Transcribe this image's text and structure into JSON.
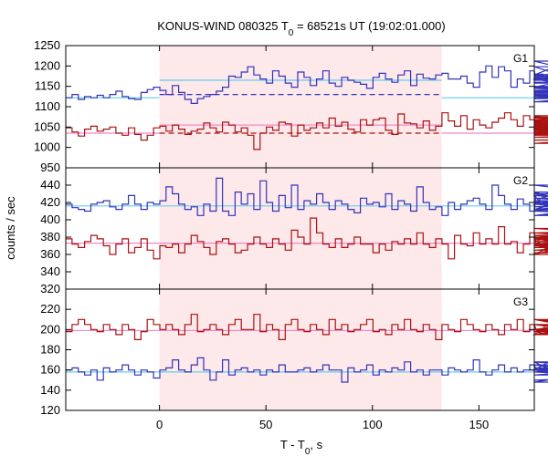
{
  "chart_data": {
    "type": "line",
    "title_prefix": "KONUS-WIND 080325 T",
    "title_sub": "0",
    "title_suffix": " = 68521s UT (19:02:01.000)",
    "xlabel_prefix": "T - T",
    "xlabel_sub": "0",
    "xlabel_suffix": ", s",
    "ylabel": "counts / sec",
    "xlim": [
      -44,
      176
    ],
    "xticks": [
      0,
      50,
      100,
      150
    ],
    "shade_region": [
      0,
      132.5
    ],
    "shade_color": "#fde8ea",
    "bin_width": 2.944,
    "colors": {
      "blue_series": "#3333bb",
      "red_series": "#aa1111",
      "blue_fit": "#66ccee",
      "red_fit": "#ee88cc",
      "red_bg": "#aa1111",
      "blue_bg": "#3333bb"
    },
    "panels": [
      {
        "label": "G1",
        "ylim": [
          950,
          1250
        ],
        "yticks": [
          950,
          1000,
          1050,
          1100,
          1150,
          1200,
          1250
        ],
        "series": [
          {
            "color_key": "blue_series",
            "values": [
              1122,
              1130,
              1118,
              1125,
              1122,
              1128,
              1122,
              1130,
              1138,
              1125,
              1120,
              1118,
              1135,
              1142,
              1148,
              1140,
              1130,
              1152,
              1135,
              1118,
              1108,
              1120,
              1125,
              1130,
              1138,
              1148,
              1175,
              1172,
              1185,
              1198,
              1178,
              1168,
              1158,
              1188,
              1175,
              1158,
              1148,
              1185,
              1172,
              1152,
              1168,
              1188,
              1158,
              1150,
              1172,
              1165,
              1160,
              1155,
              1145,
              1172,
              1182,
              1168,
              1160,
              1178,
              1188,
              1152,
              1180,
              1170,
              1168,
              1178,
              1182,
              1168,
              1168,
              1175,
              1158,
              1148,
              1185,
              1200,
              1172,
              1198,
              1188,
              1148,
              1168,
              1158,
              1188,
              1168,
              1180,
              1178,
              1198,
              1198,
              1172,
              1168,
              1148,
              1148,
              1178,
              1160,
              1158,
              1170,
              1172,
              1170,
              1165,
              1168,
              1175,
              1212,
              1140,
              1148,
              1138,
              1112,
              1132,
              1120,
              1125,
              1112,
              1145,
              1128,
              1135,
              1140,
              1122,
              1132,
              1128,
              1125,
              1135,
              1148,
              1128,
              1138,
              1130,
              1150
            ]
          },
          {
            "color_key": "red_series",
            "values": [
              1048,
              1038,
              1028,
              1045,
              1052,
              1040,
              1045,
              1050,
              1035,
              1030,
              1048,
              1032,
              1018,
              1030,
              1048,
              1052,
              1040,
              1055,
              1045,
              1032,
              1040,
              1045,
              1060,
              1048,
              1038,
              1062,
              1055,
              1038,
              1048,
              1030,
              995,
              1035,
              1050,
              1042,
              1062,
              1058,
              1028,
              1055,
              1042,
              1048,
              1060,
              1048,
              1072,
              1052,
              1062,
              1045,
              1038,
              1068,
              1055,
              1068,
              1072,
              1042,
              1032,
              1082,
              1060,
              1058,
              1048,
              1065,
              1042,
              1052,
              1085,
              1065,
              1052,
              1078,
              1045,
              1068,
              1055,
              1048,
              1062,
              1072,
              1085,
              1068,
              1052,
              1078,
              1068,
              1045,
              1062,
              1058,
              1075,
              1065,
              1052,
              1042,
              1068,
              1055,
              1078,
              1048,
              1038,
              1062,
              1048,
              1058,
              1072,
              1055,
              1068,
              1035,
              1060,
              1072,
              1048,
              1058,
              1040,
              1018,
              1025,
              1040,
              1010,
              1038,
              1025,
              1030,
              1032,
              1048,
              1030,
              1038,
              1045,
              1025,
              1035,
              1042,
              1032,
              1038,
              1040,
              1038,
              1030,
              1042
            ]
          }
        ],
        "fits": [
          {
            "color_key": "blue_fit",
            "y": 1165,
            "x_range": [
              0,
              132.5
            ]
          },
          {
            "color_key": "blue_fit",
            "y": 1122,
            "x_range": [
              -44,
              0
            ]
          },
          {
            "color_key": "blue_fit",
            "y": 1122,
            "x_range": [
              132.5,
              176
            ]
          },
          {
            "color_key": "red_fit",
            "y": 1055,
            "x_range": [
              0,
              132.5
            ]
          },
          {
            "color_key": "red_fit",
            "y": 1035,
            "x_range": [
              -44,
              0
            ]
          },
          {
            "color_key": "red_fit",
            "y": 1035,
            "x_range": [
              132.5,
              176
            ]
          }
        ],
        "backgrounds": [
          {
            "color_key": "blue_bg",
            "y": 1130,
            "x_range": [
              0,
              132.5
            ]
          },
          {
            "color_key": "red_bg",
            "y": 1035,
            "x_range": [
              0,
              132.5
            ]
          }
        ]
      },
      {
        "label": "G2",
        "ylim": [
          320,
          460
        ],
        "yticks": [
          320,
          340,
          360,
          380,
          400,
          420,
          440
        ],
        "series": [
          {
            "color_key": "blue_series",
            "values": [
              418,
              414,
              412,
              410,
              418,
              420,
              422,
              415,
              412,
              418,
              428,
              418,
              412,
              420,
              418,
              422,
              438,
              430,
              418,
              412,
              415,
              405,
              418,
              410,
              448,
              410,
              405,
              432,
              418,
              430,
              412,
              445,
              420,
              410,
              428,
              414,
              440,
              412,
              422,
              418,
              430,
              420,
              412,
              422,
              418,
              412,
              408,
              425,
              418,
              420,
              415,
              430,
              412,
              422,
              418,
              410,
              438,
              420,
              412,
              415,
              405,
              420,
              412,
              418,
              422,
              425,
              418,
              412,
              440,
              428,
              418,
              412,
              424,
              418,
              410,
              428,
              418,
              432,
              420,
              412,
              422,
              410,
              418,
              432,
              412,
              418,
              430,
              430,
              415,
              422,
              418,
              440,
              425,
              425,
              418,
              410,
              405,
              425,
              412,
              418,
              412,
              418,
              412,
              405,
              422,
              418,
              428,
              412,
              418,
              415,
              422,
              418,
              412,
              420,
              415,
              418
            ]
          },
          {
            "color_key": "red_series",
            "values": [
              378,
              372,
              368,
              375,
              382,
              378,
              370,
              360,
              372,
              378,
              362,
              368,
              378,
              365,
              355,
              370,
              368,
              372,
              362,
              372,
              382,
              375,
              368,
              360,
              375,
              378,
              372,
              362,
              365,
              372,
              380,
              372,
              368,
              378,
              372,
              365,
              388,
              380,
              372,
              402,
              385,
              372,
              368,
              378,
              368,
              372,
              380,
              372,
              372,
              362,
              372,
              365,
              375,
              372,
              378,
              372,
              385,
              372,
              368,
              378,
              372,
              355,
              382,
              372,
              370,
              385,
              372,
              378,
              372,
              392,
              372,
              375,
              362,
              372,
              385,
              372,
              375,
              380,
              372,
              360,
              378,
              372,
              368,
              372,
              360,
              380,
              372,
              378,
              368,
              372,
              365,
              372,
              382,
              372,
              378,
              375,
              372,
              368,
              378,
              382,
              370,
              390,
              378,
              372,
              380,
              385,
              372,
              378,
              385,
              390,
              378,
              372,
              372,
              385,
              362,
              375
            ]
          }
        ],
        "fits": [
          {
            "color_key": "blue_fit",
            "y": 416,
            "x_range": [
              -44,
              176
            ]
          },
          {
            "color_key": "red_fit",
            "y": 373,
            "x_range": [
              -44,
              176
            ]
          }
        ],
        "backgrounds": []
      },
      {
        "label": "G3",
        "ylim": [
          120,
          240
        ],
        "yticks": [
          120,
          140,
          160,
          180,
          200,
          220
        ],
        "series": [
          {
            "color_key": "blue_series",
            "values": [
              160,
              162,
              158,
              155,
              160,
              150,
              162,
              158,
              160,
              165,
              160,
              155,
              160,
              158,
              152,
              160,
              162,
              170,
              160,
              158,
              165,
              172,
              160,
              150,
              158,
              170,
              155,
              160,
              162,
              158,
              160,
              155,
              160,
              158,
              165,
              158,
              158,
              160,
              162,
              158,
              160,
              165,
              160,
              160,
              148,
              162,
              158,
              160,
              165,
              155,
              160,
              158,
              162,
              160,
              168,
              158,
              160,
              155,
              160,
              160,
              155,
              162,
              160,
              158,
              160,
              170,
              158,
              155,
              160,
              165,
              158,
              162,
              158,
              160,
              165,
              160,
              160,
              168,
              158,
              160,
              162,
              158,
              160,
              165,
              158,
              155,
              160,
              160,
              148,
              162,
              160,
              158,
              160,
              168,
              158,
              165,
              160,
              158,
              160,
              158,
              162,
              160,
              165,
              158,
              160,
              160,
              158,
              162,
              160,
              150,
              158,
              162,
              160,
              158,
              162,
              160
            ]
          },
          {
            "color_key": "red_series",
            "values": [
              198,
              205,
              210,
              205,
              200,
              198,
              205,
              200,
              195,
              205,
              200,
              190,
              198,
              210,
              205,
              200,
              205,
              200,
              195,
              205,
              215,
              198,
              200,
              205,
              200,
              195,
              205,
              210,
              200,
              200,
              215,
              198,
              205,
              200,
              190,
              205,
              210,
              200,
              198,
              205,
              200,
              195,
              210,
              200,
              205,
              198,
              200,
              205,
              210,
              198,
              200,
              195,
              205,
              200,
              210,
              200,
              198,
              205,
              200,
              190,
              205,
              200,
              198,
              210,
              205,
              200,
              198,
              205,
              200,
              195,
              205,
              200,
              210,
              198,
              205,
              200,
              198,
              195,
              210,
              205,
              200,
              198,
              205,
              200,
              195,
              205,
              200,
              210,
              198,
              200,
              205,
              200,
              195,
              205,
              200,
              210,
              198,
              200,
              205,
              200,
              195,
              205,
              200,
              210,
              198,
              205,
              200,
              195,
              205,
              200,
              200,
              205,
              198,
              205,
              200,
              198
            ]
          }
        ],
        "fits": [
          {
            "color_key": "blue_fit",
            "y": 158,
            "x_range": [
              -44,
              176
            ]
          },
          {
            "color_key": "red_fit",
            "y": 199,
            "x_range": [
              -44,
              176
            ]
          }
        ],
        "backgrounds": []
      }
    ]
  }
}
